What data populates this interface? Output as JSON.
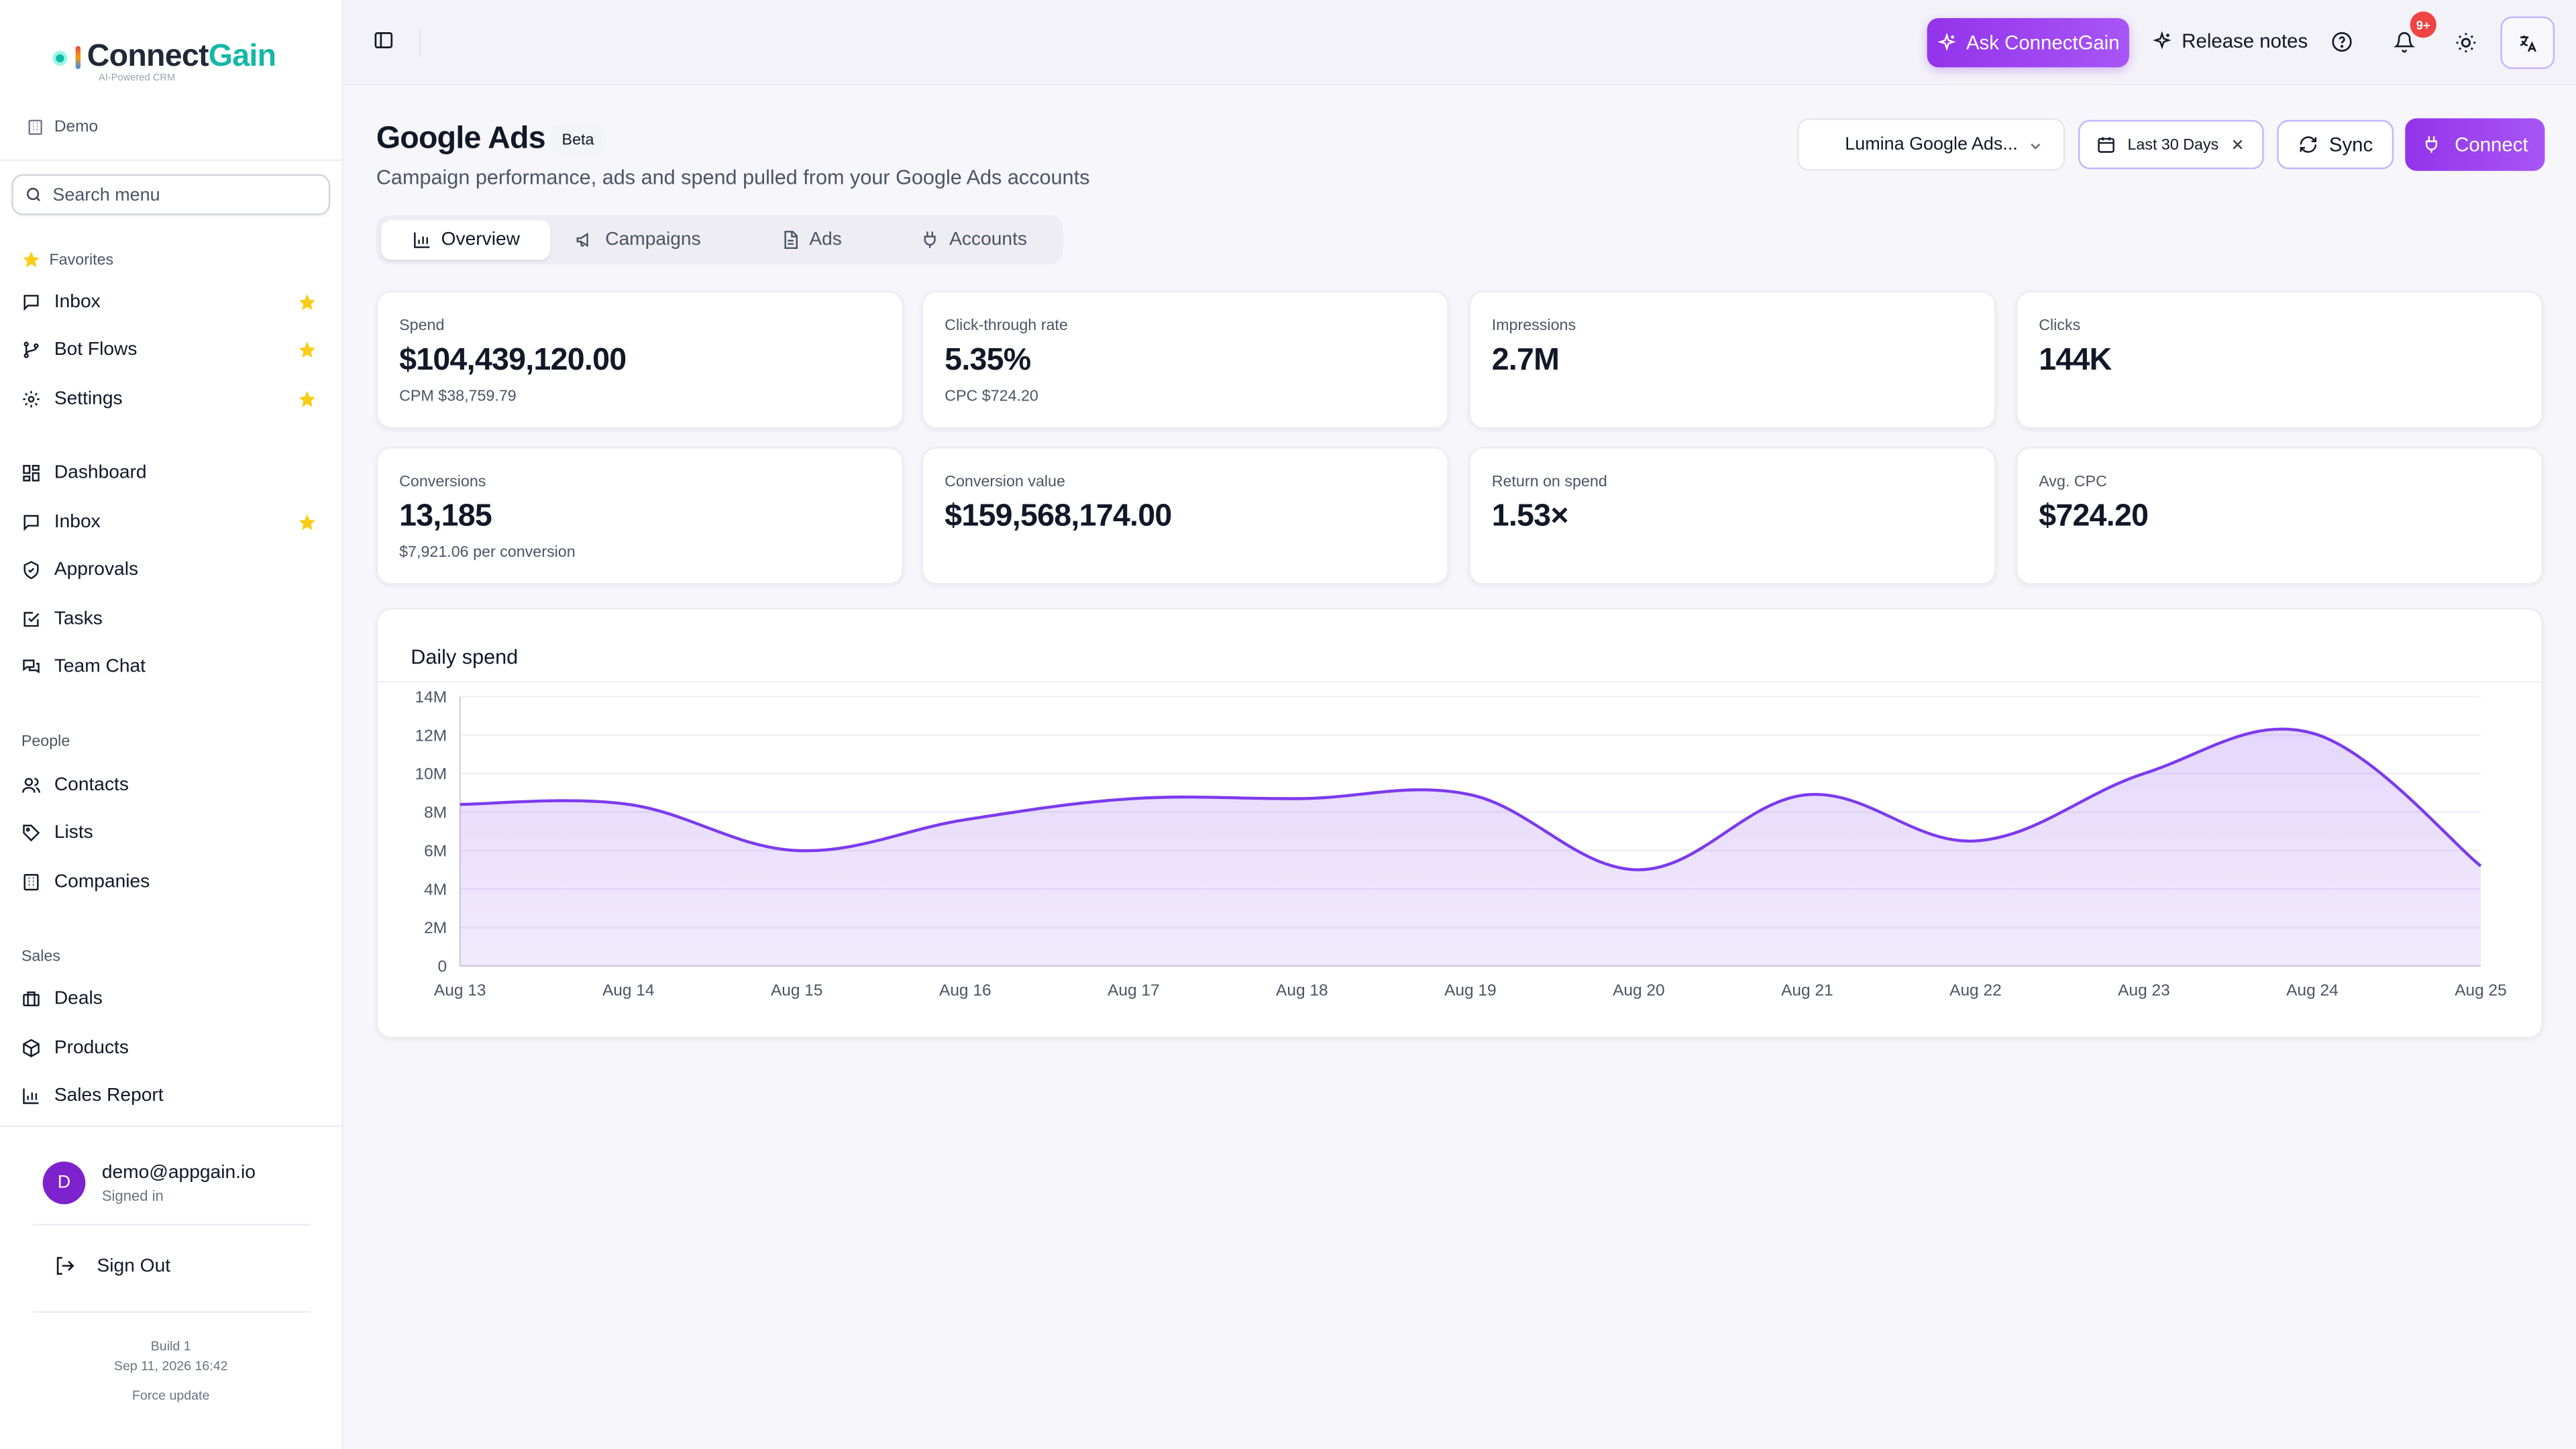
{
  "app": {
    "brand_part1": "Connect",
    "brand_part2": "Gain",
    "tagline": "AI-Powered CRM",
    "workspace": "Demo"
  },
  "sidebar": {
    "search_placeholder": "Search menu",
    "favorites_title": "Favorites",
    "favorites": [
      {
        "label": "Inbox",
        "icon": "message-square-icon",
        "starred": true
      },
      {
        "label": "Bot Flows",
        "icon": "git-branch-icon",
        "starred": true
      },
      {
        "label": "Settings",
        "icon": "gear-icon",
        "starred": true
      }
    ],
    "main_items": [
      {
        "label": "Dashboard",
        "icon": "dashboard-icon"
      },
      {
        "label": "Inbox",
        "icon": "message-square-icon",
        "starred": true
      },
      {
        "label": "Approvals",
        "icon": "shield-check-icon"
      },
      {
        "label": "Tasks",
        "icon": "check-square-icon"
      },
      {
        "label": "Team Chat",
        "icon": "chat-bubbles-icon"
      }
    ],
    "people_title": "People",
    "people": [
      {
        "label": "Contacts",
        "icon": "users-icon"
      },
      {
        "label": "Lists",
        "icon": "tag-icon"
      },
      {
        "label": "Companies",
        "icon": "building-icon"
      }
    ],
    "sales_title": "Sales",
    "sales": [
      {
        "label": "Deals",
        "icon": "briefcase-icon"
      },
      {
        "label": "Products",
        "icon": "package-icon"
      },
      {
        "label": "Sales Report",
        "icon": "bar-chart-icon"
      }
    ],
    "user_initial": "D",
    "user_email": "demo@appgain.io",
    "user_status": "Signed in",
    "sign_out": "Sign Out",
    "build_label": "Build 1",
    "build_date": "Sep 11, 2026 16:42",
    "force_update": "Force update"
  },
  "topbar": {
    "ask_label": "Ask ConnectGain",
    "release_notes": "Release notes",
    "notifications_badge": "9+"
  },
  "page": {
    "title": "Google Ads",
    "badge": "Beta",
    "subtitle": "Campaign performance, ads and spend pulled from your Google Ads accounts",
    "account_select": "Lumina Google Ads...",
    "date_range": "Last 30 Days",
    "sync_label": "Sync",
    "connect_label": "Connect",
    "tabs": [
      {
        "label": "Overview",
        "active": true
      },
      {
        "label": "Campaigns",
        "active": false
      },
      {
        "label": "Ads",
        "active": false
      },
      {
        "label": "Accounts",
        "active": false
      }
    ]
  },
  "metrics": [
    {
      "label": "Spend",
      "value": "$104,439,120.00",
      "sub": "CPM $38,759.79"
    },
    {
      "label": "Click-through rate",
      "value": "5.35%",
      "sub": "CPC $724.20"
    },
    {
      "label": "Impressions",
      "value": "2.7M",
      "sub": ""
    },
    {
      "label": "Clicks",
      "value": "144K",
      "sub": ""
    },
    {
      "label": "Conversions",
      "value": "13,185",
      "sub": "$7,921.06 per conversion"
    },
    {
      "label": "Conversion value",
      "value": "$159,568,174.00",
      "sub": ""
    },
    {
      "label": "Return on spend",
      "value": "1.53×",
      "sub": ""
    },
    {
      "label": "Avg. CPC",
      "value": "$724.20",
      "sub": ""
    }
  ],
  "chart_data": {
    "type": "area",
    "title": "Daily spend",
    "x": [
      "Aug 13",
      "Aug 14",
      "Aug 15",
      "Aug 16",
      "Aug 17",
      "Aug 18",
      "Aug 19",
      "Aug 20",
      "Aug 21",
      "Aug 22",
      "Aug 23",
      "Aug 24",
      "Aug 25"
    ],
    "values": [
      8400000,
      8400000,
      6000000,
      7600000,
      8700000,
      8700000,
      8900000,
      5000000,
      8900000,
      6500000,
      10000000,
      12100000,
      5200000
    ],
    "y_ticks": [
      "0",
      "2M",
      "4M",
      "6M",
      "8M",
      "10M",
      "12M",
      "14M"
    ],
    "ylim": [
      0,
      14000000
    ],
    "color": "#7c3aed",
    "grid": true
  }
}
